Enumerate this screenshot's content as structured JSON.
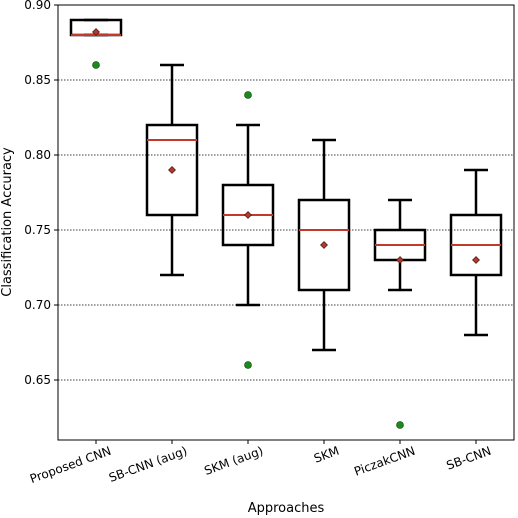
{
  "chart_data": {
    "type": "box",
    "xlabel": "Approaches",
    "ylabel": "Classification Accuracy",
    "ylim": [
      0.61,
      0.9
    ],
    "yticks": [
      "0.65",
      "0.70",
      "0.75",
      "0.80",
      "0.85",
      "0.90"
    ],
    "grid": "horizontal dotted",
    "categories": [
      "Proposed CNN",
      "SB-CNN (aug)",
      "SKM (aug)",
      "SKM",
      "PiczakCNN",
      "SB-CNN"
    ],
    "boxes": [
      {
        "category": "Proposed CNN",
        "whisker_low": 0.88,
        "q1": 0.88,
        "median": 0.88,
        "q3": 0.89,
        "whisker_high": 0.89,
        "mean": 0.882,
        "outliers": [
          0.86
        ]
      },
      {
        "category": "SB-CNN (aug)",
        "whisker_low": 0.72,
        "q1": 0.76,
        "median": 0.81,
        "q3": 0.82,
        "whisker_high": 0.86,
        "mean": 0.79,
        "outliers": []
      },
      {
        "category": "SKM (aug)",
        "whisker_low": 0.7,
        "q1": 0.74,
        "median": 0.76,
        "q3": 0.78,
        "whisker_high": 0.82,
        "mean": 0.76,
        "outliers": [
          0.84,
          0.66
        ]
      },
      {
        "category": "SKM",
        "whisker_low": 0.67,
        "q1": 0.71,
        "median": 0.75,
        "q3": 0.77,
        "whisker_high": 0.81,
        "mean": 0.74,
        "outliers": []
      },
      {
        "category": "PiczakCNN",
        "whisker_low": 0.71,
        "q1": 0.73,
        "median": 0.74,
        "q3": 0.75,
        "whisker_high": 0.77,
        "mean": 0.73,
        "outliers": [
          0.62
        ]
      },
      {
        "category": "SB-CNN",
        "whisker_low": 0.68,
        "q1": 0.72,
        "median": 0.74,
        "q3": 0.76,
        "whisker_high": 0.79,
        "mean": 0.73,
        "outliers": []
      }
    ],
    "colors": {
      "box": "#000000",
      "median": "#c0392b",
      "mean": "#b03a2e",
      "outlier": "#1a8a1a",
      "grid": "#000000"
    }
  }
}
